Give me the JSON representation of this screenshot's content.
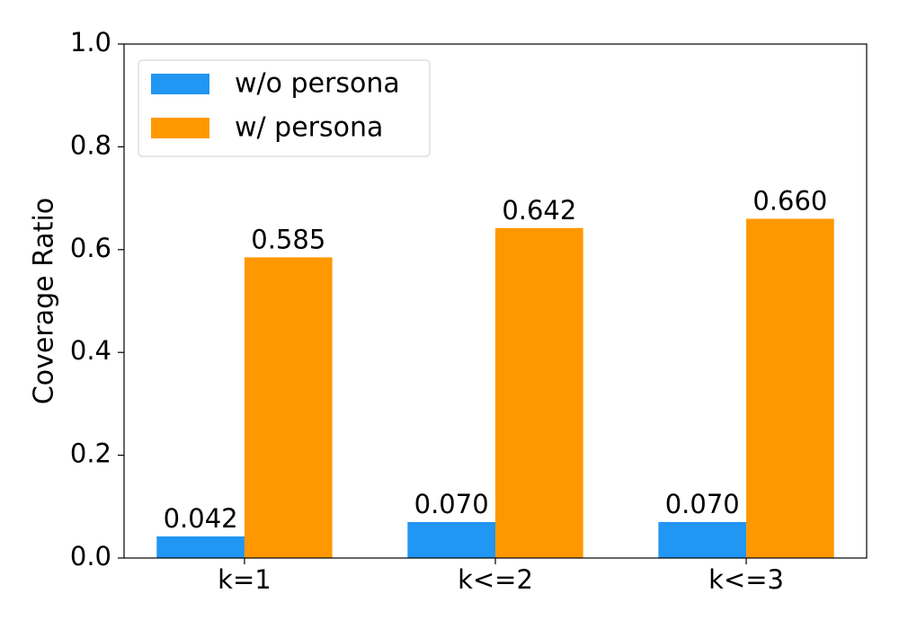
{
  "chart_data": {
    "type": "bar",
    "y_label": "Coverage Ratio",
    "categories": [
      "k=1",
      "k<=2",
      "k<=3"
    ],
    "series": [
      {
        "name": "w/o persona",
        "color": "#2196f3",
        "values": [
          0.042,
          0.07,
          0.07
        ],
        "value_labels": [
          "0.042",
          "0.070",
          "0.070"
        ]
      },
      {
        "name": "w/ persona",
        "color": "#ff9800",
        "values": [
          0.585,
          0.642,
          0.66
        ],
        "value_labels": [
          "0.585",
          "0.642",
          "0.660"
        ]
      }
    ],
    "ylim": [
      0,
      1
    ],
    "yticks": [
      {
        "value": 0,
        "label": "0.0"
      },
      0.2,
      0.4,
      0.6,
      0.8,
      {
        "value": 1,
        "label": "1.0"
      }
    ],
    "grid": false,
    "legend": "upper left"
  }
}
